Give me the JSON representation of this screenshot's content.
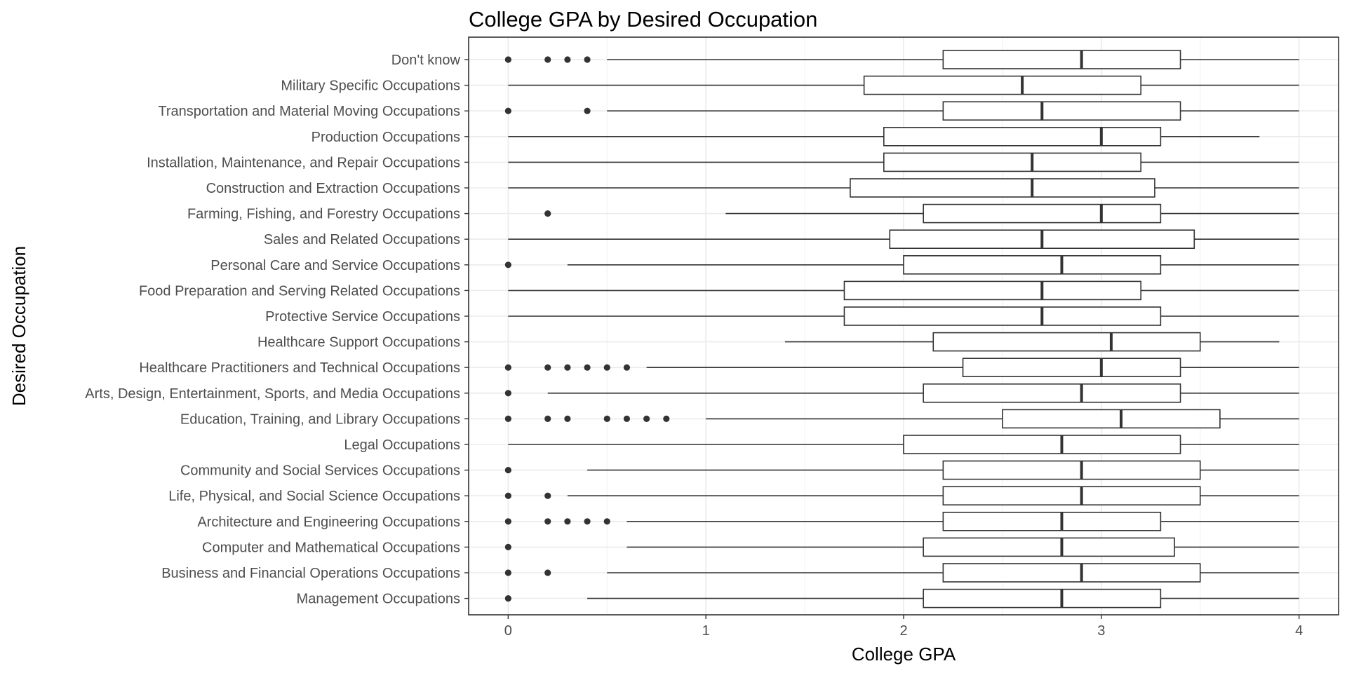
{
  "chart_data": {
    "type": "boxplot",
    "title": "College GPA by Desired Occupation",
    "xlabel": "College GPA",
    "ylabel": "Desired Occupation",
    "xlim": [
      -0.2,
      4.2
    ],
    "xticks": [
      0,
      1,
      2,
      3,
      4
    ],
    "grid": true,
    "legend": "none",
    "colors": {
      "box_fill": "#ffffff",
      "line": "#333333",
      "grid_major": "#ebebeb",
      "grid_minor": "#f3f3f3",
      "panel_border": "#333333"
    },
    "categories": [
      {
        "name": "Don't know",
        "min": 0.5,
        "q1": 2.2,
        "median": 2.9,
        "q3": 3.4,
        "max": 4.0,
        "outliers": [
          0,
          0.2,
          0.3,
          0.4
        ]
      },
      {
        "name": "Military Specific Occupations",
        "min": 0.0,
        "q1": 1.8,
        "median": 2.6,
        "q3": 3.2,
        "max": 4.0,
        "outliers": []
      },
      {
        "name": "Transportation and Material Moving Occupations",
        "min": 0.5,
        "q1": 2.2,
        "median": 2.7,
        "q3": 3.4,
        "max": 4.0,
        "outliers": [
          0,
          0.4
        ]
      },
      {
        "name": "Production Occupations",
        "min": 0.0,
        "q1": 1.9,
        "median": 3.0,
        "q3": 3.3,
        "max": 3.8,
        "outliers": []
      },
      {
        "name": "Installation, Maintenance, and Repair Occupations",
        "min": 0.0,
        "q1": 1.9,
        "median": 2.65,
        "q3": 3.2,
        "max": 4.0,
        "outliers": []
      },
      {
        "name": "Construction and Extraction Occupations",
        "min": 0.0,
        "q1": 1.73,
        "median": 2.65,
        "q3": 3.27,
        "max": 4.0,
        "outliers": []
      },
      {
        "name": "Farming, Fishing, and Forestry Occupations",
        "min": 1.1,
        "q1": 2.1,
        "median": 3.0,
        "q3": 3.3,
        "max": 4.0,
        "outliers": [
          0.2
        ]
      },
      {
        "name": "Sales and Related Occupations",
        "min": 0.0,
        "q1": 1.93,
        "median": 2.7,
        "q3": 3.47,
        "max": 4.0,
        "outliers": []
      },
      {
        "name": "Personal Care and Service Occupations",
        "min": 0.3,
        "q1": 2.0,
        "median": 2.8,
        "q3": 3.3,
        "max": 4.0,
        "outliers": [
          0
        ]
      },
      {
        "name": "Food Preparation and Serving Related Occupations",
        "min": 0.0,
        "q1": 1.7,
        "median": 2.7,
        "q3": 3.2,
        "max": 4.0,
        "outliers": []
      },
      {
        "name": "Protective Service Occupations",
        "min": 0.0,
        "q1": 1.7,
        "median": 2.7,
        "q3": 3.3,
        "max": 4.0,
        "outliers": []
      },
      {
        "name": "Healthcare Support Occupations",
        "min": 1.4,
        "q1": 2.15,
        "median": 3.05,
        "q3": 3.5,
        "max": 3.9,
        "outliers": []
      },
      {
        "name": "Healthcare Practitioners and Technical Occupations",
        "min": 0.7,
        "q1": 2.3,
        "median": 3.0,
        "q3": 3.4,
        "max": 4.0,
        "outliers": [
          0,
          0.2,
          0.3,
          0.4,
          0.5,
          0.6
        ]
      },
      {
        "name": "Arts, Design, Entertainment, Sports, and Media Occupations",
        "min": 0.2,
        "q1": 2.1,
        "median": 2.9,
        "q3": 3.4,
        "max": 4.0,
        "outliers": [
          0
        ]
      },
      {
        "name": "Education, Training, and Library Occupations",
        "min": 1.0,
        "q1": 2.5,
        "median": 3.1,
        "q3": 3.6,
        "max": 4.0,
        "outliers": [
          0,
          0.2,
          0.3,
          0.5,
          0.6,
          0.7,
          0.8
        ]
      },
      {
        "name": "Legal Occupations",
        "min": 0.0,
        "q1": 2.0,
        "median": 2.8,
        "q3": 3.4,
        "max": 4.0,
        "outliers": []
      },
      {
        "name": "Community and Social Services Occupations",
        "min": 0.4,
        "q1": 2.2,
        "median": 2.9,
        "q3": 3.5,
        "max": 4.0,
        "outliers": [
          0
        ]
      },
      {
        "name": "Life, Physical, and Social Science Occupations",
        "min": 0.3,
        "q1": 2.2,
        "median": 2.9,
        "q3": 3.5,
        "max": 4.0,
        "outliers": [
          0,
          0.2
        ]
      },
      {
        "name": "Architecture and Engineering Occupations",
        "min": 0.6,
        "q1": 2.2,
        "median": 2.8,
        "q3": 3.3,
        "max": 4.0,
        "outliers": [
          0,
          0.2,
          0.3,
          0.4,
          0.5
        ]
      },
      {
        "name": "Computer and Mathematical Occupations",
        "min": 0.6,
        "q1": 2.1,
        "median": 2.8,
        "q3": 3.37,
        "max": 4.0,
        "outliers": [
          0
        ]
      },
      {
        "name": "Business and Financial Operations Occupations",
        "min": 0.5,
        "q1": 2.2,
        "median": 2.9,
        "q3": 3.5,
        "max": 4.0,
        "outliers": [
          0,
          0.2
        ]
      },
      {
        "name": "Management Occupations",
        "min": 0.4,
        "q1": 2.1,
        "median": 2.8,
        "q3": 3.3,
        "max": 4.0,
        "outliers": [
          0
        ]
      }
    ]
  }
}
